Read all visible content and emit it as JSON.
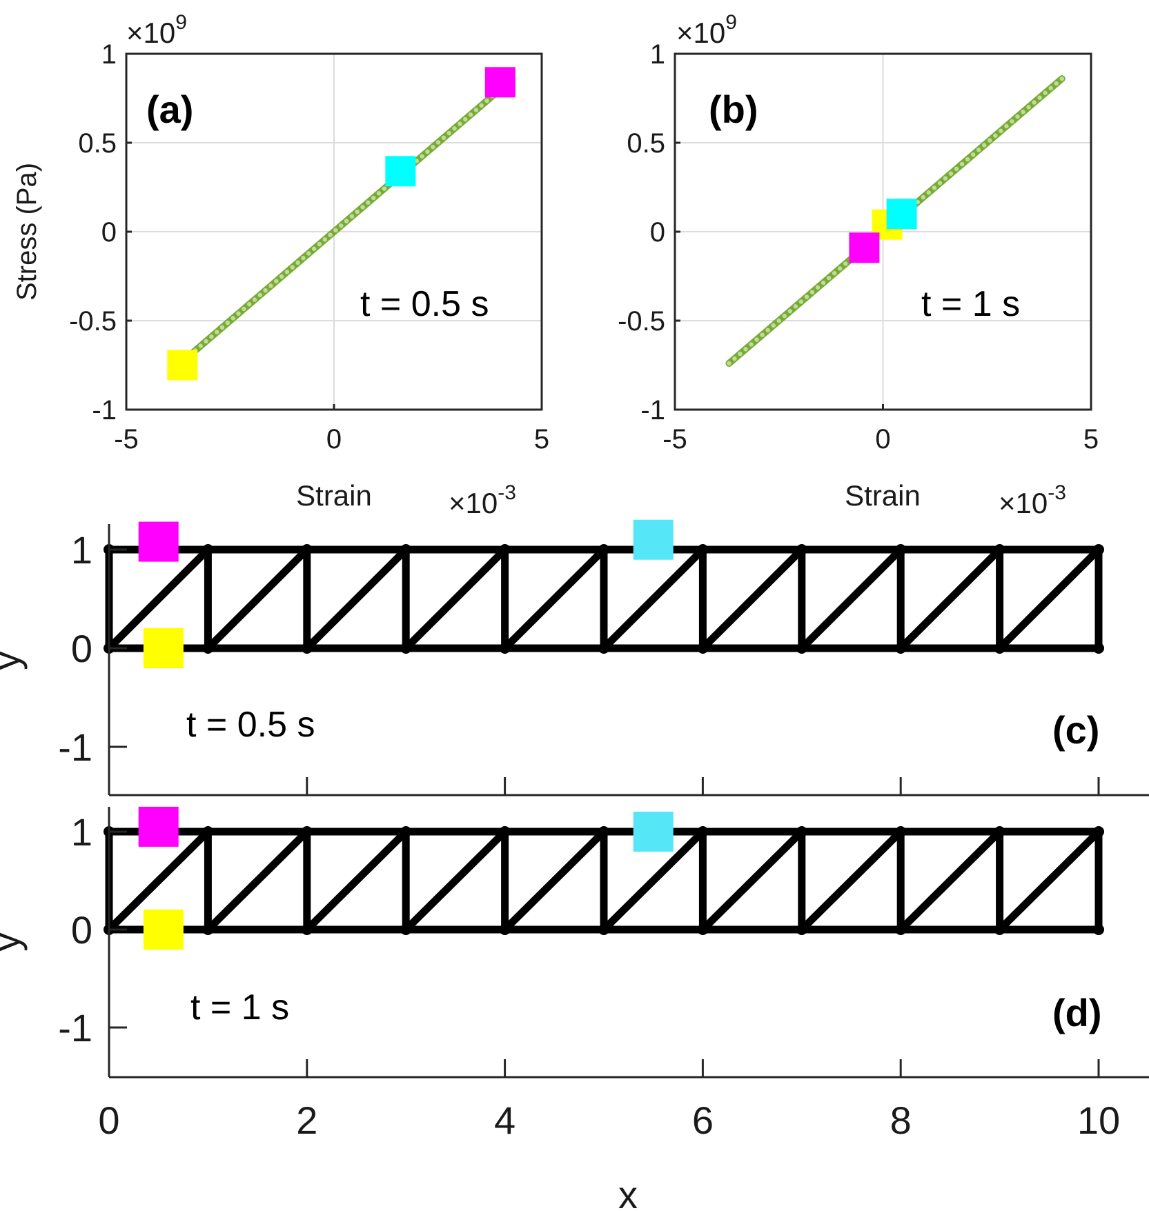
{
  "chart_data": [
    {
      "panel": "(a)",
      "type": "scatter",
      "annotation": "t = 0.5 s",
      "xlabel": "Strain",
      "ylabel": "Stress (Pa)",
      "x_exponent": "×10",
      "x_exponent_power": "-3",
      "y_exponent": "×10",
      "y_exponent_power": "9",
      "xlim": [
        -5,
        5
      ],
      "ylim": [
        -1,
        1
      ],
      "xticks": [
        -5,
        0,
        5
      ],
      "xtick_labels": [
        "-5",
        "0",
        "5"
      ],
      "yticks": [
        -1,
        -0.5,
        0,
        0.5,
        1
      ],
      "ytick_labels": [
        "-1",
        "-0.5",
        "0",
        "0.5",
        "1"
      ],
      "grid": true,
      "line_color": "#77ac30",
      "series": [
        {
          "x_range": [
            -3.6,
            4.2
          ],
          "slope_gpa": 200
        }
      ],
      "markers": [
        {
          "color": "#ff00ff",
          "x": 4.0,
          "y": 0.84
        },
        {
          "color": "#00ffff",
          "x": 1.6,
          "y": 0.34
        },
        {
          "color": "#ffff00",
          "x": -3.65,
          "y": -0.75
        }
      ]
    },
    {
      "panel": "(b)",
      "type": "scatter",
      "annotation": "t = 1 s",
      "xlabel": "Strain",
      "ylabel": "",
      "x_exponent": "×10",
      "x_exponent_power": "-3",
      "y_exponent": "×10",
      "y_exponent_power": "9",
      "xlim": [
        -5,
        5
      ],
      "ylim": [
        -1,
        1
      ],
      "xticks": [
        -5,
        0,
        5
      ],
      "xtick_labels": [
        "-5",
        "0",
        "5"
      ],
      "yticks": [
        -1,
        -0.5,
        0,
        0.5,
        1
      ],
      "ytick_labels": [
        "-1",
        "-0.5",
        "0",
        "0.5",
        "1"
      ],
      "grid": true,
      "line_color": "#77ac30",
      "series": [
        {
          "x_range": [
            -3.7,
            4.3
          ],
          "slope_gpa": 200
        }
      ],
      "markers": [
        {
          "color": "#ffff00",
          "x": 0.1,
          "y": 0.04
        },
        {
          "color": "#00ffff",
          "x": 0.45,
          "y": 0.1
        },
        {
          "color": "#ff00ff",
          "x": -0.45,
          "y": -0.09
        }
      ]
    },
    {
      "panel": "(c)",
      "type": "diagram",
      "annotation": "t = 0.5 s",
      "ylabel": "y",
      "xlim": [
        0,
        10.5
      ],
      "ylim": [
        -1.5,
        1.3
      ],
      "yticks": [
        -1,
        0,
        1
      ],
      "ytick_labels": [
        "-1",
        "0",
        "1"
      ],
      "xticks": [
        0,
        2,
        4,
        6,
        8,
        10
      ],
      "truss_bays": 10,
      "markers": [
        {
          "color": "#ff00ff",
          "x": 0.5,
          "y": 1.08
        },
        {
          "color": "#55e6f8",
          "x": 5.5,
          "y": 1.1
        },
        {
          "color": "#ffff00",
          "x": 0.55,
          "y": 0.0
        }
      ]
    },
    {
      "panel": "(d)",
      "type": "diagram",
      "annotation": "t = 1 s",
      "ylabel": "y",
      "xlabel": "x",
      "xlim": [
        0,
        10.5
      ],
      "ylim": [
        -1.5,
        1.3
      ],
      "yticks": [
        -1,
        0,
        1
      ],
      "ytick_labels": [
        "-1",
        "0",
        "1"
      ],
      "xticks": [
        0,
        2,
        4,
        6,
        8,
        10
      ],
      "xtick_labels": [
        "0",
        "2",
        "4",
        "6",
        "8",
        "10"
      ],
      "truss_bays": 10,
      "markers": [
        {
          "color": "#ff00ff",
          "x": 0.5,
          "y": 1.05
        },
        {
          "color": "#55e6f8",
          "x": 5.5,
          "y": 1.0
        },
        {
          "color": "#ffff00",
          "x": 0.55,
          "y": 0.0
        }
      ]
    }
  ]
}
